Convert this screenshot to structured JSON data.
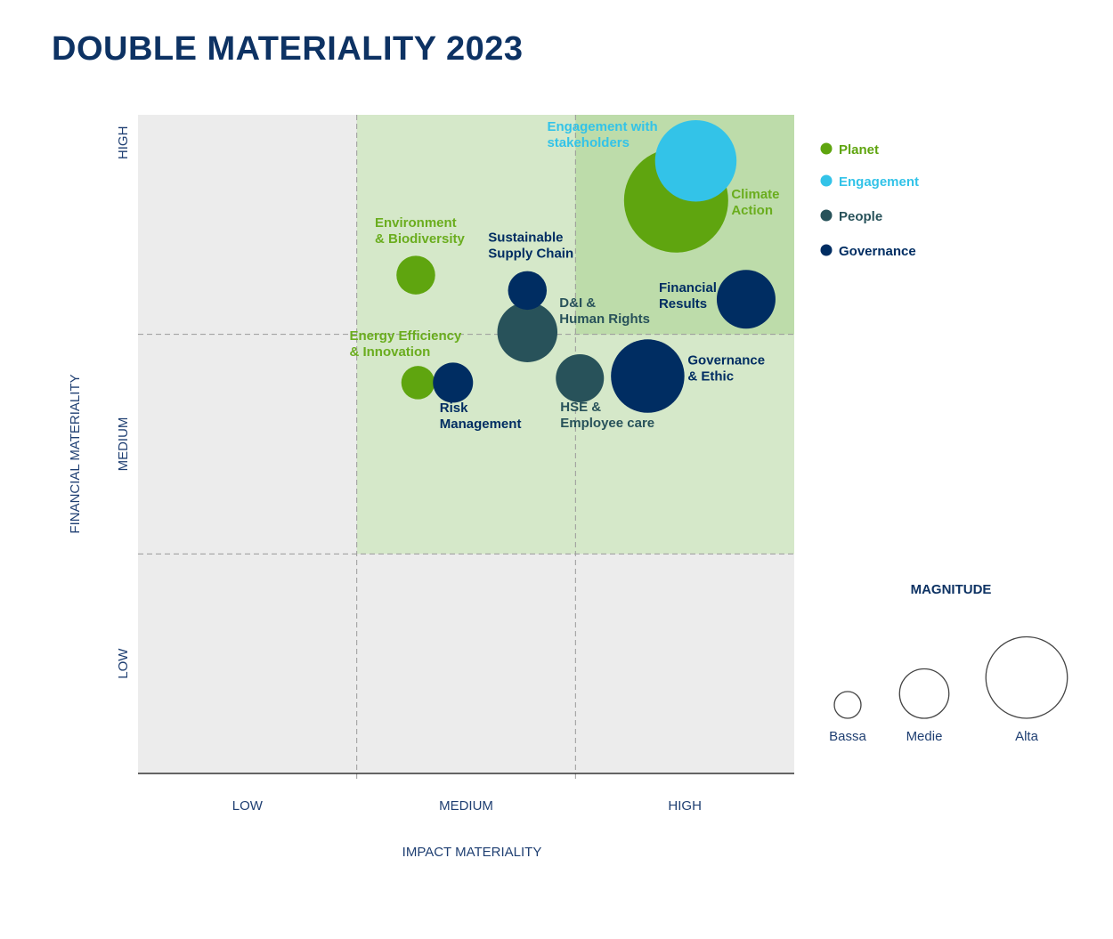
{
  "title": "DOUBLE MATERIALITY 2023",
  "chart_data": {
    "type": "scatter",
    "subtype": "bubble",
    "title": "DOUBLE MATERIALITY 2023",
    "xlabel": "IMPACT MATERIALITY",
    "ylabel": "FINANCIAL MATERIALITY",
    "xlim": [
      0,
      3
    ],
    "ylim": [
      0,
      3
    ],
    "x_tick_labels": [
      "LOW",
      "MEDIUM",
      "HIGH"
    ],
    "y_tick_labels": [
      "LOW",
      "MEDIUM",
      "HIGH"
    ],
    "grid": "dashed quadrant lines",
    "legend_placement": "right",
    "colors": {
      "Planet": "#5fa50f",
      "Engagement": "#33c3e8",
      "People": "#28525a",
      "Governance": "#002d62"
    },
    "zone_colors": {
      "low": "#ececec",
      "medium": "#d5e8c9",
      "high": "#bddcaa"
    },
    "series": [
      {
        "name": "Planet",
        "points": [
          {
            "label": [
              "Climate",
              "Action"
            ],
            "x": 2.46,
            "y": 2.61,
            "size": 3.9
          },
          {
            "label": [
              "Environment",
              "& Biodiversity"
            ],
            "x": 1.27,
            "y": 2.27,
            "size": 1.45
          },
          {
            "label": [
              "Energy Efficiency",
              "& Innovation"
            ],
            "x": 1.28,
            "y": 1.78,
            "size": 1.25
          }
        ]
      },
      {
        "name": "Engagement",
        "points": [
          {
            "label": [
              "Engagement with",
              "stakeholders"
            ],
            "x": 2.55,
            "y": 2.79,
            "size": 3.05
          }
        ]
      },
      {
        "name": "People",
        "points": [
          {
            "label": [
              "D&I &",
              "Human Rights"
            ],
            "x": 1.78,
            "y": 2.01,
            "size": 2.25
          },
          {
            "label": [
              "HSE &",
              "Employee care"
            ],
            "x": 2.02,
            "y": 1.8,
            "size": 1.8
          }
        ]
      },
      {
        "name": "Governance",
        "points": [
          {
            "label": [
              "Sustainable",
              "Supply Chain"
            ],
            "x": 1.78,
            "y": 2.2,
            "size": 1.45
          },
          {
            "label": [
              "Financial",
              "Results"
            ],
            "x": 2.78,
            "y": 2.16,
            "size": 2.2
          },
          {
            "label": [
              "Risk",
              "Management"
            ],
            "x": 1.44,
            "y": 1.78,
            "size": 1.5
          },
          {
            "label": [
              "Governance",
              "& Ethic"
            ],
            "x": 2.33,
            "y": 1.81,
            "size": 2.75
          }
        ]
      }
    ],
    "magnitude_legend": {
      "title": "MAGNITUDE",
      "items": [
        {
          "label": "Bassa",
          "size": 1
        },
        {
          "label": "Medie",
          "size": 1.85
        },
        {
          "label": "Alta",
          "size": 3.05
        }
      ]
    }
  }
}
